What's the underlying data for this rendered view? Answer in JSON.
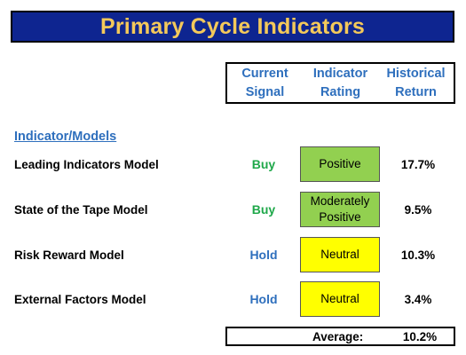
{
  "title": "Primary Cycle Indicators",
  "headers": {
    "signal": [
      "Current",
      "Signal"
    ],
    "rating": [
      "Indicator",
      "Rating"
    ],
    "return": [
      "Historical",
      "Return"
    ]
  },
  "section_label": "Indicator/Models",
  "colors": {
    "title_bg": "#0e2590",
    "title_text": "#f4c95a",
    "header_text": "#2e6fbd",
    "buy": "#1fa84a",
    "hold": "#2e6fbd",
    "positive_bg": "#92d050",
    "neutral_bg": "#ffff00"
  },
  "rows": [
    {
      "name": "Leading Indicators Model",
      "signal": "Buy",
      "rating": [
        "Positive"
      ],
      "return": "17.7%"
    },
    {
      "name": "State of the Tape Model",
      "signal": "Buy",
      "rating": [
        "Moderately",
        "Positive"
      ],
      "return": "9.5%"
    },
    {
      "name": "Risk Reward Model",
      "signal": "Hold",
      "rating": [
        "Neutral"
      ],
      "return": "10.3%"
    },
    {
      "name": "External Factors Model",
      "signal": "Hold",
      "rating": [
        "Neutral"
      ],
      "return": "3.4%"
    }
  ],
  "average": {
    "label": "Average:",
    "value": "10.2%"
  }
}
